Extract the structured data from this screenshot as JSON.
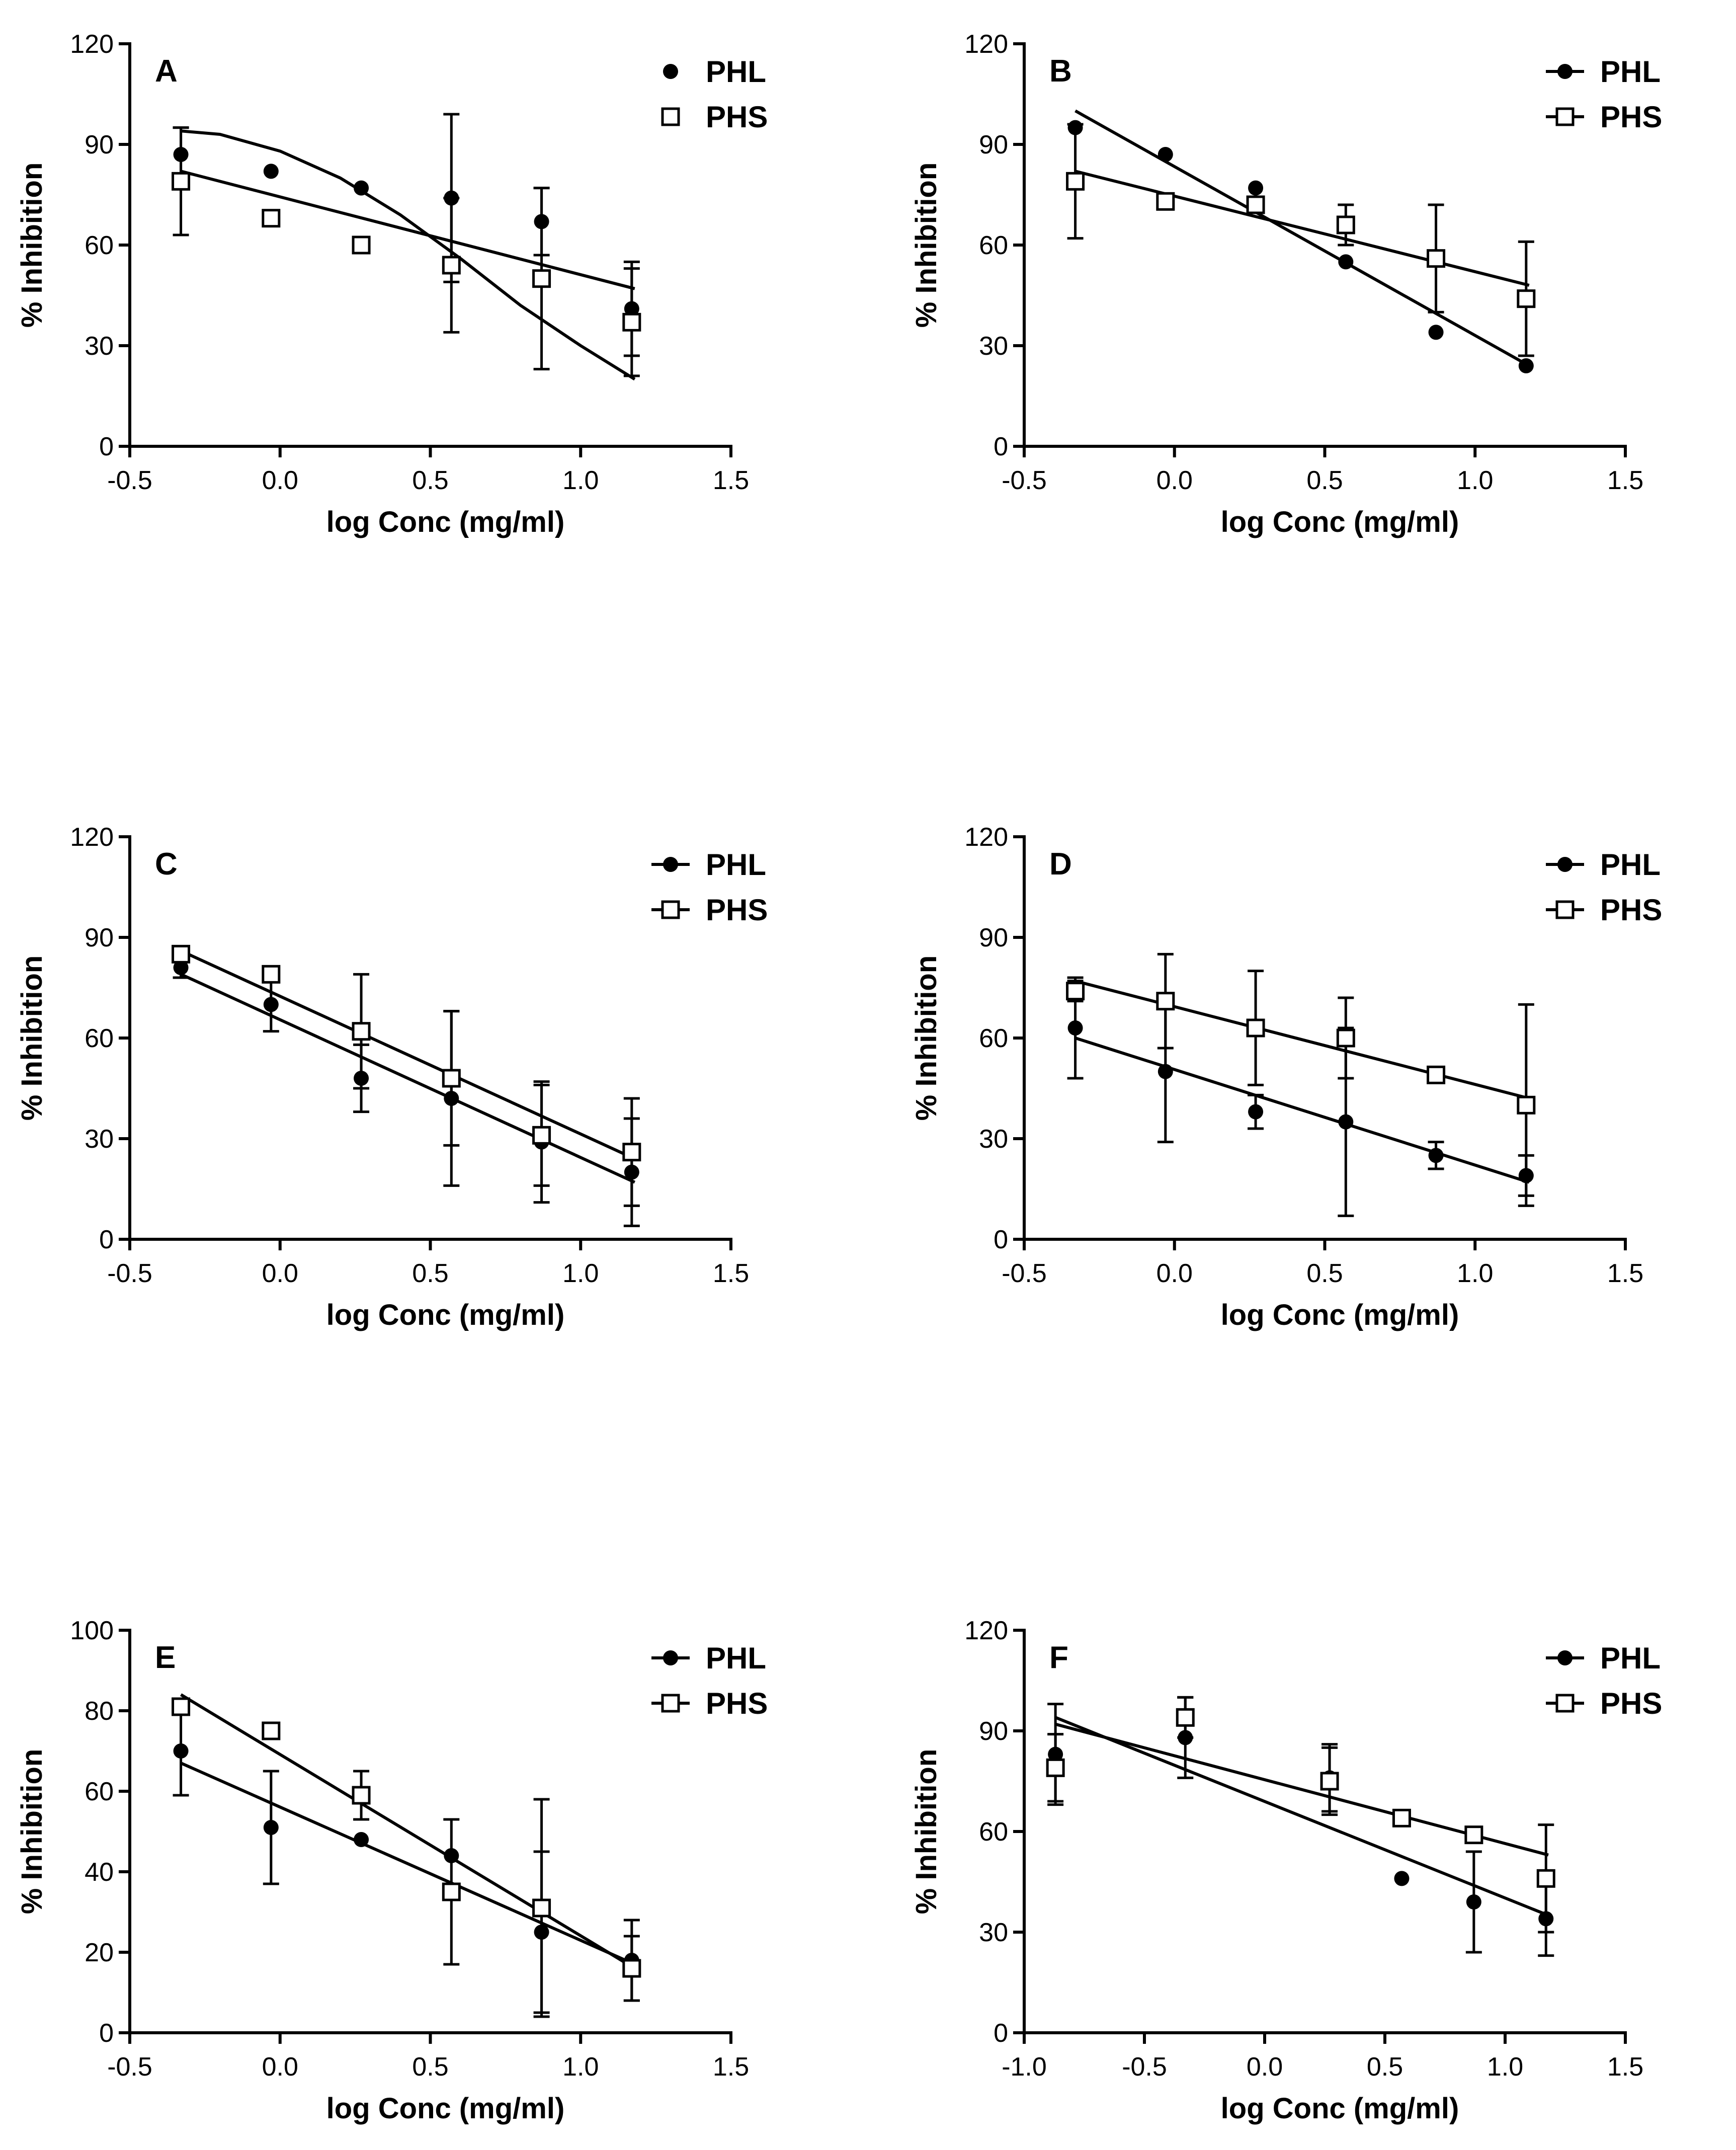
{
  "chart_data": [
    {
      "type": "scatter",
      "panel": "A",
      "xlabel": "log Conc (mg/ml)",
      "ylabel": "% Inhibition",
      "xlim": [
        -0.5,
        1.5
      ],
      "xticks": [
        -0.5,
        0.0,
        0.5,
        1.0,
        1.5
      ],
      "xtick_labels": [
        "-0.5",
        "0.0",
        "0.5",
        "1.0",
        "1.5"
      ],
      "ylim": [
        0,
        120
      ],
      "yticks": [
        0,
        30,
        60,
        90,
        120
      ],
      "ytick_labels": [
        "0",
        "30",
        "60",
        "90",
        "120"
      ],
      "legend_line": false,
      "series": [
        {
          "name": "PHL",
          "marker": "filled-circle",
          "fit": "sigmoid",
          "fit_points": [
            [
              -0.33,
              94
            ],
            [
              -0.2,
              93
            ],
            [
              0.0,
              88
            ],
            [
              0.2,
              80
            ],
            [
              0.4,
              69
            ],
            [
              0.6,
              56
            ],
            [
              0.8,
              42
            ],
            [
              1.0,
              30
            ],
            [
              1.18,
              20
            ]
          ],
          "x": [
            -0.33,
            -0.03,
            0.27,
            0.57,
            0.87,
            1.17
          ],
          "y": [
            87,
            82,
            77,
            74,
            67,
            41
          ],
          "err": [
            8,
            0,
            0,
            25,
            10,
            14
          ]
        },
        {
          "name": "PHS",
          "marker": "open-square",
          "fit": "linear",
          "fit_points": [
            [
              -0.33,
              82
            ],
            [
              1.18,
              47
            ]
          ],
          "x": [
            -0.33,
            -0.03,
            0.27,
            0.57,
            0.87,
            1.17
          ],
          "y": [
            79,
            68,
            60,
            54,
            50,
            37
          ],
          "err": [
            16,
            2,
            0,
            20,
            27,
            16
          ]
        }
      ]
    },
    {
      "type": "scatter",
      "panel": "B",
      "xlabel": "log Conc (mg/ml)",
      "ylabel": "% Inhibition",
      "xlim": [
        -0.5,
        1.5
      ],
      "xticks": [
        -0.5,
        0.0,
        0.5,
        1.0,
        1.5
      ],
      "xtick_labels": [
        "-0.5",
        "0.0",
        "0.5",
        "1.0",
        "1.5"
      ],
      "ylim": [
        0,
        120
      ],
      "yticks": [
        0,
        30,
        60,
        90,
        120
      ],
      "ytick_labels": [
        "0",
        "30",
        "60",
        "90",
        "120"
      ],
      "legend_line": true,
      "series": [
        {
          "name": "PHL",
          "marker": "filled-circle",
          "fit": "linear",
          "fit_points": [
            [
              -0.33,
              100
            ],
            [
              1.18,
              24
            ]
          ],
          "x": [
            -0.33,
            -0.03,
            0.27,
            0.57,
            0.87,
            1.17
          ],
          "y": [
            95,
            87,
            77,
            55,
            34,
            24
          ],
          "err": [
            0,
            0,
            0,
            0,
            0,
            0
          ]
        },
        {
          "name": "PHS",
          "marker": "open-square",
          "fit": "linear",
          "fit_points": [
            [
              -0.33,
              82
            ],
            [
              1.18,
              48
            ]
          ],
          "x": [
            -0.33,
            -0.03,
            0.27,
            0.57,
            0.87,
            1.17
          ],
          "y": [
            79,
            73,
            72,
            66,
            56,
            44
          ],
          "err": [
            17,
            0,
            2,
            6,
            16,
            17
          ]
        }
      ]
    },
    {
      "type": "scatter",
      "panel": "C",
      "xlabel": "log Conc (mg/ml)",
      "ylabel": "% Inhibition",
      "xlim": [
        -0.5,
        1.5
      ],
      "xticks": [
        -0.5,
        0.0,
        0.5,
        1.0,
        1.5
      ],
      "xtick_labels": [
        "-0.5",
        "0.0",
        "0.5",
        "1.0",
        "1.5"
      ],
      "ylim": [
        0,
        120
      ],
      "yticks": [
        0,
        30,
        60,
        90,
        120
      ],
      "ytick_labels": [
        "0",
        "30",
        "60",
        "90",
        "120"
      ],
      "legend_line": true,
      "series": [
        {
          "name": "PHL",
          "marker": "filled-circle",
          "fit": "linear",
          "fit_points": [
            [
              -0.33,
              79
            ],
            [
              1.18,
              17
            ]
          ],
          "x": [
            -0.33,
            -0.03,
            0.27,
            0.57,
            0.87,
            1.17
          ],
          "y": [
            81,
            70,
            48,
            42,
            29,
            20
          ],
          "err": [
            3,
            8,
            10,
            26,
            18,
            16
          ]
        },
        {
          "name": "PHS",
          "marker": "open-square",
          "fit": "linear",
          "fit_points": [
            [
              -0.33,
              86
            ],
            [
              1.18,
              24
            ]
          ],
          "x": [
            -0.33,
            -0.03,
            0.27,
            0.57,
            0.87,
            1.17
          ],
          "y": [
            85,
            79,
            62,
            48,
            31,
            26
          ],
          "err": [
            2,
            2,
            17,
            20,
            15,
            16
          ]
        }
      ]
    },
    {
      "type": "scatter",
      "panel": "D",
      "xlabel": "log Conc (mg/ml)",
      "ylabel": "% Inhibition",
      "xlim": [
        -0.5,
        1.5
      ],
      "xticks": [
        -0.5,
        0.0,
        0.5,
        1.0,
        1.5
      ],
      "xtick_labels": [
        "-0.5",
        "0.0",
        "0.5",
        "1.0",
        "1.5"
      ],
      "ylim": [
        0,
        120
      ],
      "yticks": [
        0,
        30,
        60,
        90,
        120
      ],
      "ytick_labels": [
        "0",
        "30",
        "60",
        "90",
        "120"
      ],
      "legend_line": true,
      "series": [
        {
          "name": "PHL",
          "marker": "filled-circle",
          "fit": "linear",
          "fit_points": [
            [
              -0.33,
              60
            ],
            [
              1.18,
              17
            ]
          ],
          "x": [
            -0.33,
            -0.03,
            0.27,
            0.57,
            0.87,
            1.17
          ],
          "y": [
            63,
            50,
            38,
            35,
            25,
            19
          ],
          "err": [
            15,
            21,
            5,
            28,
            4,
            6
          ]
        },
        {
          "name": "PHS",
          "marker": "open-square",
          "fit": "linear",
          "fit_points": [
            [
              -0.33,
              77
            ],
            [
              1.18,
              42
            ]
          ],
          "x": [
            -0.33,
            -0.03,
            0.27,
            0.57,
            0.87,
            1.17
          ],
          "y": [
            74,
            71,
            63,
            60,
            49,
            40
          ],
          "err": [
            3,
            14,
            17,
            12,
            0,
            30
          ]
        }
      ]
    },
    {
      "type": "scatter",
      "panel": "E",
      "xlabel": "log Conc (mg/ml)",
      "ylabel": "% Inhibition",
      "xlim": [
        -0.5,
        1.5
      ],
      "xticks": [
        -0.5,
        0.0,
        0.5,
        1.0,
        1.5
      ],
      "xtick_labels": [
        "-0.5",
        "0.0",
        "0.5",
        "1.0",
        "1.5"
      ],
      "ylim": [
        0,
        100
      ],
      "yticks": [
        0,
        20,
        40,
        60,
        80,
        100
      ],
      "ytick_labels": [
        "0",
        "20",
        "40",
        "60",
        "80",
        "100"
      ],
      "legend_line": true,
      "series": [
        {
          "name": "PHL",
          "marker": "filled-circle",
          "fit": "linear",
          "fit_points": [
            [
              -0.33,
              67
            ],
            [
              1.18,
              17
            ]
          ],
          "x": [
            -0.33,
            -0.03,
            0.27,
            0.57,
            0.87,
            1.17
          ],
          "y": [
            70,
            51,
            48,
            44,
            25,
            18
          ],
          "err": [
            11,
            14,
            0,
            0,
            20,
            10
          ]
        },
        {
          "name": "PHS",
          "marker": "open-square",
          "fit": "linear",
          "fit_points": [
            [
              -0.33,
              84
            ],
            [
              1.18,
              16
            ]
          ],
          "x": [
            -0.33,
            -0.03,
            0.27,
            0.57,
            0.87,
            1.17
          ],
          "y": [
            81,
            75,
            59,
            35,
            31,
            16
          ],
          "err": [
            2,
            2,
            6,
            18,
            27,
            8
          ]
        }
      ]
    },
    {
      "type": "scatter",
      "panel": "F",
      "xlabel": "log Conc (mg/ml)",
      "ylabel": "% Inhibition",
      "xlim": [
        -1.0,
        1.5
      ],
      "xticks": [
        -1.0,
        -0.5,
        0.0,
        0.5,
        1.0,
        1.5
      ],
      "xtick_labels": [
        "-1.0",
        "-0.5",
        "0.0",
        "0.5",
        "1.0",
        "1.5"
      ],
      "ylim": [
        0,
        120
      ],
      "yticks": [
        0,
        30,
        60,
        90,
        120
      ],
      "ytick_labels": [
        "0",
        "30",
        "60",
        "90",
        "120"
      ],
      "legend_line": true,
      "series": [
        {
          "name": "PHL",
          "marker": "filled-circle",
          "fit": "linear",
          "fit_points": [
            [
              -0.87,
              94
            ],
            [
              1.18,
              35
            ]
          ],
          "x": [
            -0.87,
            -0.33,
            0.27,
            0.57,
            0.87,
            1.17
          ],
          "y": [
            83,
            88,
            76,
            46,
            39,
            34
          ],
          "err": [
            15,
            12,
            10,
            0,
            15,
            11
          ]
        },
        {
          "name": "PHS",
          "marker": "open-square",
          "fit": "linear",
          "fit_points": [
            [
              -0.87,
              92
            ],
            [
              1.18,
              53
            ]
          ],
          "x": [
            -0.87,
            -0.33,
            0.27,
            0.57,
            0.87,
            1.17
          ],
          "y": [
            79,
            94,
            75,
            64,
            59,
            46
          ],
          "err": [
            10,
            6,
            10,
            2,
            2,
            16
          ]
        }
      ]
    }
  ]
}
